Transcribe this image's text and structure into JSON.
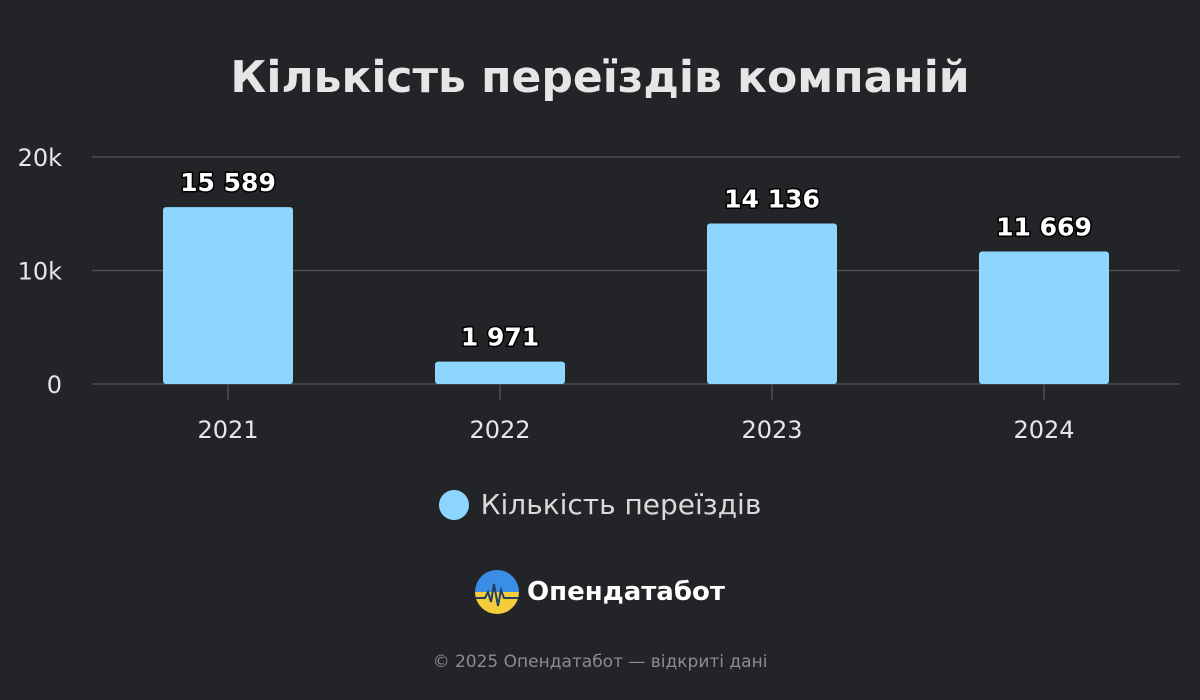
{
  "chart_data": {
    "type": "bar",
    "title": "Кількість переїздів компаній",
    "categories": [
      "2021",
      "2022",
      "2023",
      "2024"
    ],
    "series": [
      {
        "name": "Кількість переїздів",
        "values": [
          15589,
          1971,
          14136,
          11669
        ],
        "data_labels": [
          "15 589",
          "1 971",
          "14 136",
          "11 669"
        ],
        "color": "#8dd6ff"
      }
    ],
    "ylim": [
      0,
      20000
    ],
    "yticks": [
      0,
      10000,
      20000
    ],
    "ytick_labels": [
      "0",
      "10k",
      "20k"
    ],
    "grid": true,
    "legend_position": "bottom"
  },
  "colors": {
    "background": "#222428",
    "bar": "#8dd6ff",
    "grid": "#4a4c50",
    "text": "#e6e6e6"
  },
  "brand": {
    "name": "Опендатабот",
    "logo_icon": "opendatabot-logo-icon"
  },
  "footer": {
    "text": "© 2025 Опендатабот — відкриті дані"
  }
}
